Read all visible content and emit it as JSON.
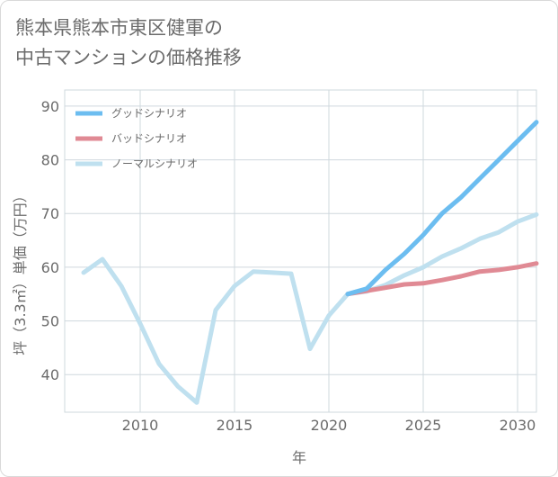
{
  "chart_data": {
    "type": "line",
    "title": "熊本県熊本市東区健軍の中古マンションの価格推移",
    "title_lines": [
      "熊本県熊本市東区健軍の",
      "中古マンションの価格推移"
    ],
    "xlabel": "年",
    "ylabel": "坪（3.3㎡）単価（万円）",
    "xlim": [
      2006,
      2031
    ],
    "ylim": [
      33,
      93
    ],
    "xticks": [
      2010,
      2015,
      2020,
      2025,
      2030
    ],
    "yticks": [
      40,
      50,
      60,
      70,
      80,
      90
    ],
    "legend_position": "top-left",
    "series": [
      {
        "name": "グッドシナリオ",
        "color": "#6cbdf0",
        "x": [
          2021,
          2022,
          2023,
          2024,
          2025,
          2026,
          2027,
          2028,
          2029,
          2030,
          2031
        ],
        "y": [
          55.0,
          56.0,
          59.5,
          62.5,
          66.0,
          70.0,
          73.0,
          76.5,
          80.0,
          83.5,
          87.0
        ]
      },
      {
        "name": "バッドシナリオ",
        "color": "#e08a94",
        "x": [
          2021,
          2022,
          2023,
          2024,
          2025,
          2026,
          2027,
          2028,
          2029,
          2030,
          2031
        ],
        "y": [
          55.0,
          55.6,
          56.2,
          56.8,
          57.0,
          57.6,
          58.3,
          59.2,
          59.5,
          60.0,
          60.7
        ]
      },
      {
        "name": "ノーマルシナリオ",
        "color": "#bfe0ef",
        "x": [
          2007,
          2008,
          2009,
          2010,
          2011,
          2012,
          2013,
          2014,
          2015,
          2016,
          2017,
          2018,
          2019,
          2020,
          2021,
          2022,
          2023,
          2024,
          2025,
          2026,
          2027,
          2028,
          2029,
          2030,
          2031
        ],
        "y": [
          59.0,
          61.5,
          56.5,
          49.5,
          42.0,
          37.8,
          34.8,
          52.0,
          56.5,
          59.2,
          59.0,
          58.8,
          44.8,
          51.0,
          55.0,
          55.5,
          56.7,
          58.5,
          60.0,
          62.0,
          63.5,
          65.3,
          66.5,
          68.5,
          69.8
        ]
      }
    ]
  }
}
